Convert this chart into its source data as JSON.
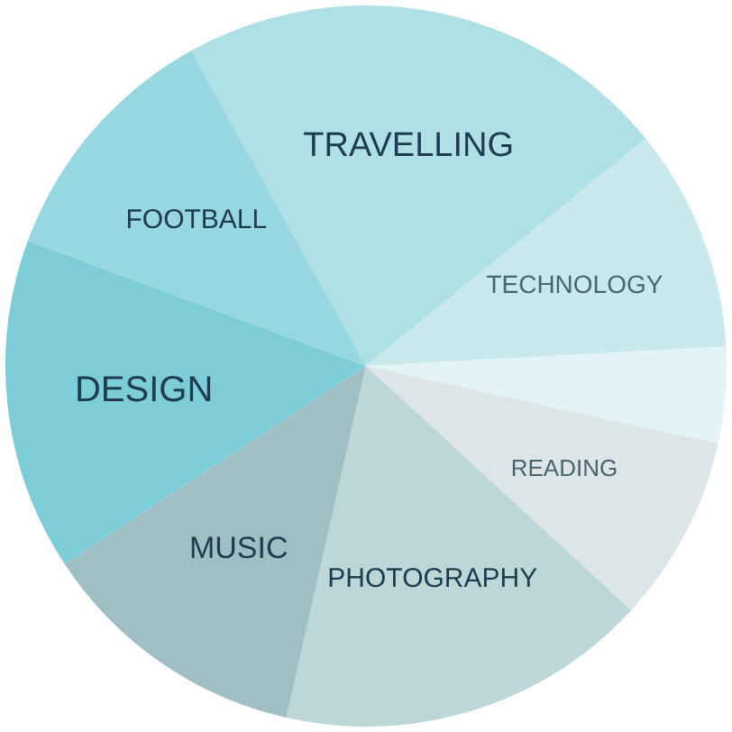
{
  "chart_data": {
    "type": "pie",
    "categories": [
      "TRAVELLING",
      "TECHNOLOGY",
      null,
      "READING",
      "PHOTOGRAPHY",
      "MUSIC",
      "DESIGN",
      "FOOTBALL"
    ],
    "values": [
      22.2,
      10,
      4.3,
      8.4,
      16.7,
      12.2,
      14.9,
      11.3
    ],
    "colors": [
      "#aee0e5",
      "#c9e9ed",
      "#e3f4f6",
      "#dde5e7",
      "#bdd6d8",
      "#9fbfc4",
      "#7ccdd8",
      "#97d8e0"
    ],
    "legend": false
  }
}
